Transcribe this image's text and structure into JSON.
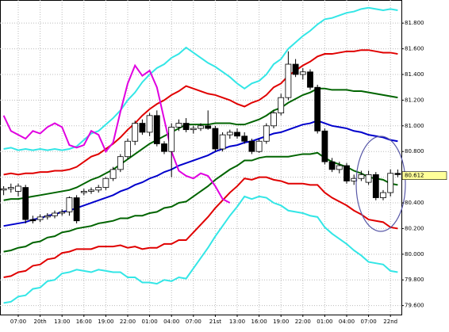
{
  "chart_data": {
    "type": "candlestick",
    "categories": [
      null,
      null,
      "07:00",
      null,
      null,
      "20th",
      null,
      null,
      "13:00",
      null,
      null,
      "16:00",
      null,
      null,
      "19:00",
      null,
      null,
      "22:00",
      null,
      null,
      "01:00",
      null,
      null,
      "04:00",
      null,
      null,
      "07:00",
      null,
      null,
      "21st",
      null,
      null,
      "13:00",
      null,
      null,
      "16:00",
      null,
      null,
      "19:00",
      null,
      null,
      "22:00",
      null,
      null,
      "01:00",
      null,
      null,
      "04:00",
      null,
      null,
      "07:00",
      null,
      null,
      "22nd",
      null
    ],
    "open": [
      80.5,
      80.51,
      80.49,
      80.52,
      80.27,
      80.27,
      80.29,
      80.3,
      80.32,
      80.33,
      80.44,
      80.48,
      80.49,
      80.5,
      80.52,
      80.59,
      80.66,
      80.76,
      80.88,
      81.02,
      80.95,
      81.08,
      80.86,
      80.8,
      80.99,
      81.02,
      80.97,
      80.98,
      81.0,
      80.98,
      80.82,
      80.93,
      80.95,
      80.92,
      80.88,
      80.8,
      80.88,
      81.0,
      81.1,
      81.22,
      81.48,
      81.4,
      81.42,
      81.3,
      80.96,
      80.72,
      80.66,
      80.69,
      80.57,
      80.59,
      80.56,
      80.62,
      80.44,
      80.48,
      80.63
    ],
    "high": [
      80.53,
      80.55,
      80.55,
      80.54,
      80.3,
      80.31,
      80.32,
      80.34,
      80.35,
      80.45,
      80.46,
      80.51,
      80.52,
      80.54,
      80.6,
      80.68,
      80.78,
      80.9,
      81.04,
      81.05,
      81.1,
      81.12,
      80.88,
      81.02,
      81.05,
      81.06,
      81.0,
      81.02,
      81.12,
      81.0,
      80.95,
      80.97,
      80.98,
      80.95,
      80.9,
      80.9,
      81.02,
      81.12,
      81.25,
      81.58,
      81.52,
      81.45,
      81.44,
      81.32,
      80.98,
      80.75,
      80.72,
      80.71,
      80.62,
      80.65,
      80.65,
      80.64,
      80.5,
      80.66,
      80.66
    ],
    "low": [
      80.46,
      80.48,
      80.45,
      80.24,
      80.24,
      80.25,
      80.27,
      80.28,
      80.3,
      80.3,
      80.24,
      80.46,
      80.47,
      80.48,
      80.5,
      80.57,
      80.64,
      80.74,
      80.85,
      80.93,
      80.92,
      80.84,
      80.78,
      80.6,
      80.96,
      80.95,
      80.94,
      80.96,
      80.97,
      80.8,
      80.8,
      80.9,
      80.9,
      80.86,
      80.78,
      80.79,
      80.86,
      80.98,
      81.08,
      81.2,
      81.38,
      81.36,
      81.28,
      80.94,
      80.7,
      80.64,
      80.63,
      80.55,
      80.54,
      80.57,
      80.54,
      80.42,
      80.42,
      80.45,
      80.6
    ],
    "close": [
      80.51,
      80.52,
      80.53,
      80.27,
      80.26,
      80.29,
      80.3,
      80.32,
      80.33,
      80.44,
      80.26,
      80.49,
      80.5,
      80.52,
      80.59,
      80.66,
      80.76,
      80.88,
      81.02,
      80.95,
      81.08,
      80.86,
      80.8,
      80.99,
      81.02,
      80.97,
      80.98,
      81.0,
      80.98,
      80.82,
      80.93,
      80.95,
      80.92,
      80.88,
      80.8,
      80.88,
      81.0,
      81.1,
      81.22,
      81.48,
      81.4,
      81.42,
      81.3,
      80.96,
      80.72,
      80.66,
      80.69,
      80.57,
      80.59,
      80.62,
      80.62,
      80.44,
      80.48,
      80.63,
      80.62
    ],
    "up_color": "#ffffff",
    "down_color": "#000000",
    "lines": [
      {
        "color": "#33e6e6",
        "values": [
          80.82,
          80.83,
          80.81,
          80.82,
          80.81,
          80.82,
          80.81,
          80.82,
          80.81,
          80.82,
          80.84,
          80.89,
          80.94,
          80.96,
          81.01,
          81.06,
          81.12,
          81.2,
          81.26,
          81.34,
          81.4,
          81.45,
          81.48,
          81.53,
          81.56,
          81.61,
          81.57,
          81.53,
          81.49,
          81.46,
          81.42,
          81.38,
          81.33,
          81.29,
          81.33,
          81.35,
          81.4,
          81.48,
          81.52,
          81.6,
          81.65,
          81.7,
          81.74,
          81.79,
          81.83,
          81.84,
          81.86,
          81.88,
          81.89,
          81.91,
          81.92,
          81.91,
          81.9,
          81.91,
          81.9
        ]
      },
      {
        "color": "#e00000",
        "values": [
          80.62,
          80.63,
          80.62,
          80.63,
          80.63,
          80.64,
          80.64,
          80.65,
          80.65,
          80.66,
          80.68,
          80.72,
          80.76,
          80.78,
          80.82,
          80.86,
          80.91,
          80.97,
          81.02,
          81.08,
          81.13,
          81.17,
          81.2,
          81.24,
          81.27,
          81.31,
          81.29,
          81.27,
          81.25,
          81.24,
          81.22,
          81.2,
          81.17,
          81.15,
          81.18,
          81.2,
          81.24,
          81.3,
          81.33,
          81.39,
          81.43,
          81.47,
          81.5,
          81.54,
          81.56,
          81.56,
          81.57,
          81.58,
          81.58,
          81.59,
          81.59,
          81.58,
          81.57,
          81.57,
          81.56
        ]
      },
      {
        "color": "#006400",
        "values": [
          80.42,
          80.43,
          80.43,
          80.44,
          80.45,
          80.46,
          80.47,
          80.48,
          80.49,
          80.5,
          80.52,
          80.55,
          80.58,
          80.6,
          80.63,
          80.66,
          80.7,
          80.74,
          80.78,
          80.82,
          80.86,
          80.89,
          80.92,
          80.95,
          80.98,
          81.01,
          81.01,
          81.01,
          81.01,
          81.02,
          81.02,
          81.02,
          81.01,
          81.01,
          81.03,
          81.05,
          81.08,
          81.12,
          81.14,
          81.18,
          81.21,
          81.24,
          81.26,
          81.29,
          81.29,
          81.28,
          81.28,
          81.28,
          81.27,
          81.27,
          81.26,
          81.25,
          81.24,
          81.23,
          81.22
        ]
      },
      {
        "color": "#0000cc",
        "values": [
          80.22,
          80.23,
          80.24,
          80.25,
          80.27,
          80.28,
          80.3,
          80.31,
          80.33,
          80.34,
          80.36,
          80.38,
          80.4,
          80.42,
          80.44,
          80.46,
          80.49,
          80.51,
          80.54,
          80.56,
          80.59,
          80.61,
          80.64,
          80.66,
          80.69,
          80.71,
          80.73,
          80.75,
          80.77,
          80.8,
          80.82,
          80.84,
          80.85,
          80.87,
          80.88,
          80.9,
          80.92,
          80.94,
          80.95,
          80.97,
          80.99,
          81.01,
          81.02,
          81.04,
          81.02,
          81.0,
          80.99,
          80.98,
          80.96,
          80.95,
          80.93,
          80.92,
          80.91,
          80.89,
          80.88
        ]
      },
      {
        "color": "#006400",
        "values": [
          80.02,
          80.03,
          80.05,
          80.06,
          80.09,
          80.1,
          80.13,
          80.14,
          80.17,
          80.18,
          80.2,
          80.21,
          80.22,
          80.24,
          80.25,
          80.26,
          80.28,
          80.28,
          80.3,
          80.3,
          80.32,
          80.33,
          80.36,
          80.37,
          80.4,
          80.41,
          80.45,
          80.49,
          80.53,
          80.58,
          80.62,
          80.66,
          80.69,
          80.73,
          80.73,
          80.75,
          80.76,
          80.76,
          80.76,
          80.76,
          80.77,
          80.78,
          80.78,
          80.79,
          80.75,
          80.72,
          80.7,
          80.68,
          80.65,
          80.63,
          80.6,
          80.59,
          80.58,
          80.55,
          80.54
        ]
      },
      {
        "color": "#e00000",
        "values": [
          79.82,
          79.83,
          79.86,
          79.87,
          79.91,
          79.92,
          79.96,
          79.97,
          80.01,
          80.02,
          80.04,
          80.04,
          80.04,
          80.06,
          80.06,
          80.06,
          80.07,
          80.05,
          80.06,
          80.04,
          80.05,
          80.05,
          80.08,
          80.08,
          80.11,
          80.11,
          80.17,
          80.23,
          80.29,
          80.36,
          80.42,
          80.48,
          80.53,
          80.59,
          80.58,
          80.6,
          80.6,
          80.58,
          80.57,
          80.55,
          80.55,
          80.55,
          80.54,
          80.54,
          80.48,
          80.44,
          80.41,
          80.38,
          80.34,
          80.31,
          80.27,
          80.26,
          80.25,
          80.21,
          80.2
        ]
      },
      {
        "color": "#33e6e6",
        "values": [
          79.62,
          79.63,
          79.67,
          79.68,
          79.73,
          79.74,
          79.79,
          79.8,
          79.85,
          79.86,
          79.88,
          79.87,
          79.86,
          79.88,
          79.87,
          79.86,
          79.86,
          79.82,
          79.82,
          79.78,
          79.78,
          79.77,
          79.8,
          79.79,
          79.82,
          79.81,
          79.89,
          79.97,
          80.05,
          80.14,
          80.22,
          80.3,
          80.37,
          80.45,
          80.43,
          80.45,
          80.44,
          80.4,
          80.38,
          80.34,
          80.33,
          80.32,
          80.3,
          80.29,
          80.21,
          80.16,
          80.12,
          80.08,
          80.03,
          79.99,
          79.94,
          79.93,
          79.92,
          79.87,
          79.86
        ]
      },
      {
        "color": "#e000e0",
        "values": [
          81.08,
          80.96,
          80.93,
          80.9,
          80.96,
          80.94,
          80.99,
          81.02,
          80.99,
          80.85,
          80.83,
          80.85,
          80.96,
          80.93,
          80.8,
          80.87,
          81.11,
          81.33,
          81.47,
          81.39,
          81.43,
          81.3,
          81.05,
          80.8,
          80.65,
          80.61,
          80.59,
          80.63,
          80.61,
          80.53,
          80.43,
          80.4,
          null,
          null,
          null,
          null,
          null,
          null,
          null,
          null,
          null,
          null,
          null,
          null,
          null,
          null,
          null,
          null,
          null,
          null,
          null,
          null,
          null,
          null,
          null
        ]
      }
    ],
    "ylim": [
      79.53,
      81.98
    ],
    "yticks": [
      {
        "value": 79.6,
        "label": "79.600"
      },
      {
        "value": 79.8,
        "label": "79.800"
      },
      {
        "value": 80.0,
        "label": "80.000"
      },
      {
        "value": 80.2,
        "label": "80.200"
      },
      {
        "value": 80.4,
        "label": "80.400"
      },
      {
        "value": 80.6,
        "label": "80.600"
      },
      {
        "value": 80.8,
        "label": "80.800"
      },
      {
        "value": 81.0,
        "label": "81.000"
      },
      {
        "value": 81.2,
        "label": "81.200"
      },
      {
        "value": 81.4,
        "label": "81.400"
      },
      {
        "value": 81.6,
        "label": "81.600"
      },
      {
        "value": 81.8,
        "label": "81.800"
      }
    ],
    "last_price": 80.612,
    "grid": true
  }
}
